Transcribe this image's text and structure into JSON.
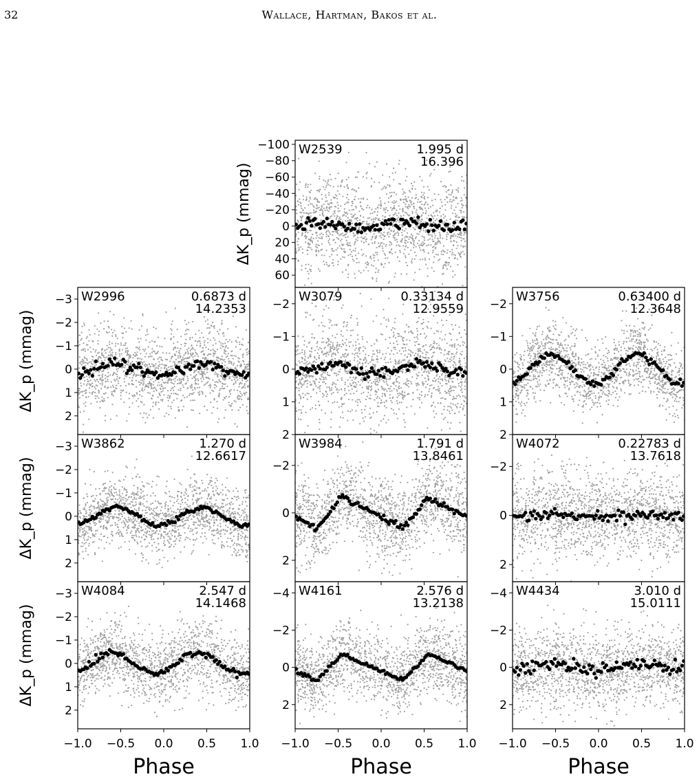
{
  "header": {
    "page_number": "32",
    "running_head": "Wallace, Hartman, Bakos et al."
  },
  "colors": {
    "raw_points": "#9e9e9e",
    "binned_points": "#000000",
    "frame": "#000000"
  },
  "chart_data": {
    "type": "scatter",
    "xlabel": "Phase",
    "ylabel": "ΔK_p (mmag)",
    "y_axis_inverted": true,
    "x_range": [
      -1.0,
      1.0
    ],
    "x_ticks": [
      "−1.0",
      "−0.5",
      "0.0",
      "0.5",
      "1.0"
    ],
    "panels": [
      {
        "id": "W2539",
        "period": "1.995 d",
        "mag": "16.396",
        "col": 1,
        "row": 0,
        "y_range": [
          -105,
          75
        ],
        "y_ticks": [
          {
            "v": -100,
            "label": "−100"
          },
          {
            "v": -80,
            "label": "−80"
          },
          {
            "v": -60,
            "label": "−60"
          },
          {
            "v": -40,
            "label": "−40"
          },
          {
            "v": -20,
            "label": "−20"
          },
          {
            "v": 0,
            "label": "0"
          },
          {
            "v": 20,
            "label": "20"
          },
          {
            "v": 40,
            "label": "40"
          },
          {
            "v": 60,
            "label": "60"
          }
        ],
        "amplitude": -4,
        "peak_phase": -0.2,
        "shape": "sine",
        "scatter": 30,
        "binned_noise": 4
      },
      {
        "id": "W2996",
        "period": "0.6873 d",
        "mag": "14.2353",
        "col": 0,
        "row": 1,
        "y_range": [
          -3.5,
          2.8
        ],
        "y_ticks": [
          {
            "v": -3,
            "label": "−3"
          },
          {
            "v": -2,
            "label": "−2"
          },
          {
            "v": -1,
            "label": "−1"
          },
          {
            "v": 0,
            "label": "0"
          },
          {
            "v": 1,
            "label": "1"
          },
          {
            "v": 2,
            "label": "2"
          }
        ],
        "amplitude": 0.25,
        "peak_phase": -0.55,
        "shape": "sine",
        "scatter": 0.9,
        "binned_noise": 0.1
      },
      {
        "id": "W3079",
        "period": "0.33134 d",
        "mag": "12.9559",
        "col": 1,
        "row": 1,
        "y_range": [
          -2.5,
          2.0
        ],
        "y_ticks": [
          {
            "v": -2,
            "label": "−2"
          },
          {
            "v": -1,
            "label": "−1"
          },
          {
            "v": 0,
            "label": "0"
          },
          {
            "v": 1,
            "label": "1"
          },
          {
            "v": 2,
            "label": "2"
          }
        ],
        "amplitude": 0.15,
        "peak_phase": -0.55,
        "shape": "sine",
        "scatter": 0.75,
        "binned_noise": 0.08
      },
      {
        "id": "W3756",
        "period": "0.63400 d",
        "mag": "12.3648",
        "col": 2,
        "row": 1,
        "y_range": [
          -2.5,
          2.0
        ],
        "y_ticks": [
          {
            "v": -2,
            "label": "−2"
          },
          {
            "v": -1,
            "label": "−1"
          },
          {
            "v": 0,
            "label": "0"
          },
          {
            "v": 1,
            "label": "1"
          },
          {
            "v": 2,
            "label": "2"
          }
        ],
        "amplitude": 0.45,
        "peak_phase": -0.55,
        "shape": "sine",
        "scatter": 0.5,
        "binned_noise": 0.05
      },
      {
        "id": "W3862",
        "period": "1.270 d",
        "mag": "12.6617",
        "col": 0,
        "row": 2,
        "y_range": [
          -3.5,
          2.8
        ],
        "y_ticks": [
          {
            "v": -3,
            "label": "−3"
          },
          {
            "v": -2,
            "label": "−2"
          },
          {
            "v": -1,
            "label": "−1"
          },
          {
            "v": 0,
            "label": "0"
          },
          {
            "v": 1,
            "label": "1"
          },
          {
            "v": 2,
            "label": "2"
          }
        ],
        "amplitude": 0.38,
        "peak_phase": -0.55,
        "shape": "sine",
        "scatter": 0.75,
        "binned_noise": 0.05
      },
      {
        "id": "W3984",
        "period": "1.791 d",
        "mag": "13.8461",
        "col": 1,
        "row": 2,
        "y_range": [
          -3.3,
          2.9
        ],
        "y_ticks": [
          {
            "v": -2,
            "label": "−2"
          },
          {
            "v": 0,
            "label": "0"
          },
          {
            "v": 2,
            "label": "2"
          }
        ],
        "amplitude": 0.65,
        "peak_phase": -0.45,
        "shape": "saw",
        "scatter": 0.85,
        "binned_noise": 0.06
      },
      {
        "id": "W4072",
        "period": "0.22783 d",
        "mag": "13.7618",
        "col": 2,
        "row": 2,
        "y_range": [
          -3.3,
          2.7
        ],
        "y_ticks": [
          {
            "v": -2,
            "label": "−2"
          },
          {
            "v": 0,
            "label": "0"
          },
          {
            "v": 2,
            "label": "2"
          }
        ],
        "amplitude": 0.06,
        "peak_phase": -0.5,
        "shape": "sine",
        "scatter": 0.9,
        "binned_noise": 0.1
      },
      {
        "id": "W4084",
        "period": "2.547 d",
        "mag": "14.1468",
        "col": 0,
        "row": 3,
        "y_range": [
          -3.5,
          2.8
        ],
        "y_ticks": [
          {
            "v": -3,
            "label": "−3"
          },
          {
            "v": -2,
            "label": "−2"
          },
          {
            "v": -1,
            "label": "−1"
          },
          {
            "v": 0,
            "label": "0"
          },
          {
            "v": 1,
            "label": "1"
          },
          {
            "v": 2,
            "label": "2"
          }
        ],
        "amplitude": 0.45,
        "peak_phase": -0.6,
        "shape": "sine",
        "scatter": 0.75,
        "binned_noise": 0.07
      },
      {
        "id": "W4161",
        "period": "2.576 d",
        "mag": "13.2138",
        "col": 1,
        "row": 3,
        "y_range": [
          -4.6,
          3.3
        ],
        "y_ticks": [
          {
            "v": -4,
            "label": "−4"
          },
          {
            "v": -2,
            "label": "−2"
          },
          {
            "v": 0,
            "label": "0"
          },
          {
            "v": 2,
            "label": "2"
          }
        ],
        "amplitude": 0.7,
        "peak_phase": -0.45,
        "shape": "saw",
        "scatter": 0.95,
        "binned_noise": 0.06
      },
      {
        "id": "W4434",
        "period": "3.010 d",
        "mag": "15.0111",
        "col": 2,
        "row": 3,
        "y_range": [
          -4.6,
          3.3
        ],
        "y_ticks": [
          {
            "v": -4,
            "label": "−4"
          },
          {
            "v": -2,
            "label": "−2"
          },
          {
            "v": 0,
            "label": "0"
          },
          {
            "v": 2,
            "label": "2"
          }
        ],
        "amplitude": 0.15,
        "peak_phase": -0.5,
        "shape": "sine",
        "scatter": 1.1,
        "binned_noise": 0.2
      }
    ]
  }
}
